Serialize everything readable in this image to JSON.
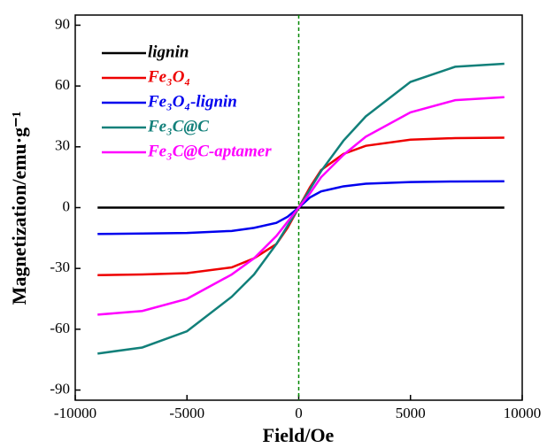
{
  "chart_data": {
    "type": "line",
    "xlabel": "Field/Oe",
    "ylabel": "Magnetization/emu·g⁻¹",
    "x": [
      -9000,
      -7000,
      -5000,
      -3000,
      -2000,
      -1000,
      -500,
      0,
      500,
      1000,
      2000,
      3000,
      5000,
      7000,
      9200
    ],
    "series": [
      {
        "name": "lignin",
        "color": "#000000",
        "values": [
          0,
          0,
          0,
          0,
          0,
          0,
          0,
          0,
          0,
          0,
          0,
          0,
          0,
          0,
          0
        ]
      },
      {
        "name": "Fe₃O₄",
        "color": "#ee0000",
        "values": [
          -33.3,
          -33,
          -32.3,
          -29.5,
          -25,
          -18,
          -10,
          0,
          10,
          18.5,
          26.5,
          30.5,
          33.5,
          34.3,
          34.5
        ]
      },
      {
        "name": "Fe₃O₄-lignin",
        "color": "#0000ee",
        "values": [
          -13,
          -12.8,
          -12.5,
          -11.5,
          -10,
          -7.5,
          -4.5,
          0,
          5,
          8,
          10.5,
          11.8,
          12.6,
          12.9,
          13
        ]
      },
      {
        "name": "Fe₃C@C",
        "color": "#12807a",
        "values": [
          -72,
          -69,
          -61,
          -44,
          -33,
          -18,
          -9,
          0,
          9,
          18,
          33,
          45,
          62,
          69.5,
          71
        ]
      },
      {
        "name": "Fe₃C@C-aptamer",
        "color": "#ff00ff",
        "values": [
          -52.8,
          -51,
          -45,
          -33,
          -25,
          -14,
          -7,
          0,
          7,
          15,
          26,
          35,
          47,
          53,
          54.5
        ]
      }
    ],
    "xlim": [
      -10000,
      10000
    ],
    "xticks": [
      -10000,
      -5000,
      0,
      5000,
      10000
    ],
    "ylim": [
      -95,
      95
    ],
    "yticks": [
      -90,
      -60,
      -30,
      0,
      30,
      60,
      90
    ],
    "vline": 0,
    "vline_color": "#008800",
    "legend": "upper left"
  }
}
